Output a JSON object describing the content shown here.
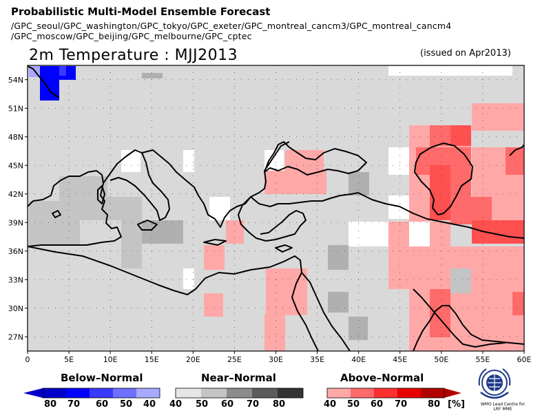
{
  "header": {
    "title": "Probabilistic Multi-Model Ensemble Forecast",
    "sources_line1": "/GPC_seoul/GPC_washington/GPC_tokyo/GPC_exeter/GPC_montreal_cancm3/GPC_montreal_cancm4",
    "sources_line2": "/GPC_moscow/GPC_beijing/GPC_melbourne/GPC_cptec"
  },
  "map": {
    "title": "2m Temperature : MJJ2013",
    "issued": "(issued on Apr2013)",
    "lon_range": [
      0,
      60
    ],
    "lat_range": [
      25.5,
      55.5
    ],
    "lat_ticks": [
      "54N",
      "51N",
      "48N",
      "45N",
      "42N",
      "39N",
      "36N",
      "33N",
      "30N",
      "27N"
    ],
    "lon_ticks": [
      "0",
      "5E",
      "10E",
      "15E",
      "20E",
      "25E",
      "30E",
      "35E",
      "40E",
      "45E",
      "50E",
      "55E",
      "60E"
    ],
    "background_color": "#d9d9d9",
    "grid": "dotted"
  },
  "legend": {
    "below": {
      "title": "Below–Normal",
      "labels": [
        "80",
        "70",
        "60",
        "50",
        "40"
      ],
      "colors": [
        "#0000c8",
        "#0000ff",
        "#3a3aff",
        "#7070ff",
        "#a8a8ff"
      ]
    },
    "near": {
      "title": "Near–Normal",
      "labels": [
        "40",
        "50",
        "60",
        "70",
        "80"
      ],
      "colors": [
        "#e6e6e6",
        "#c4c4c4",
        "#8c8c8c",
        "#5c5c5c",
        "#333333"
      ]
    },
    "above": {
      "title": "Above–Normal",
      "labels": [
        "40",
        "50",
        "60",
        "70",
        "80"
      ],
      "unit": "[%]",
      "colors": [
        "#ffa8a8",
        "#ff6a6a",
        "#ff3030",
        "#e60000",
        "#b00000"
      ]
    }
  },
  "logo": {
    "name": "WMO",
    "caption1": "WMO Lead Centre for",
    "caption2": "LRF MME"
  }
}
